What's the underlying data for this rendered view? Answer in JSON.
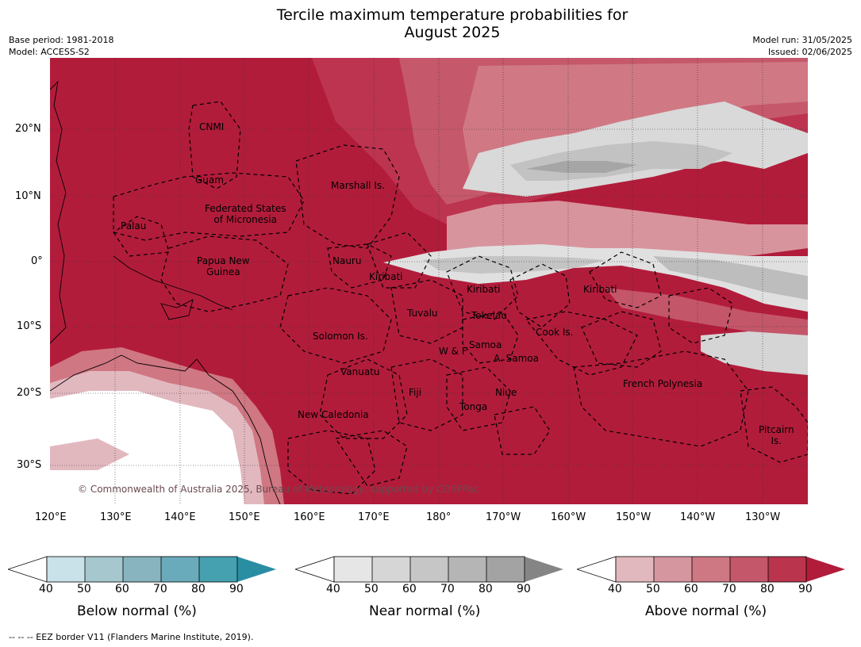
{
  "title_line1": "Tercile maximum temperature probabilities for",
  "title_line2": "August 2025",
  "meta": {
    "base_period": "Base period: 1981-2018",
    "model": "Model: ACCESS-S2",
    "model_run": "Model run: 31/05/2025",
    "issued": "Issued: 02/06/2025"
  },
  "lat_labels": [
    "20°N",
    "10°N",
    "0°",
    "10°S",
    "20°S",
    "30°S"
  ],
  "lon_labels": [
    "120°E",
    "130°E",
    "140°E",
    "150°E",
    "160°E",
    "170°E",
    "180°",
    "170°W",
    "160°W",
    "150°W",
    "140°W",
    "130°W"
  ],
  "regions": {
    "cnmi": "CNMI",
    "guam": "Guam",
    "marshall": "Marshall Is.",
    "fsm1": "Federated States",
    "fsm2": "of Micronesia",
    "palau": "Palau",
    "png1": "Papua New",
    "png2": "Guinea",
    "nauru": "Nauru",
    "kiribati_w": "Kiribati",
    "kiribati_c": "Kiribati",
    "kiribati_e": "Kiribati",
    "tuvalu": "Tuvalu",
    "tokelau": "Tokelau",
    "solomon": "Solomon Is.",
    "cook": "Cook Is.",
    "samoa": "Samoa",
    "wf": "W & F",
    "asamoa": "A. Samoa",
    "vanuatu": "Vanuatu",
    "fiji": "Fiji",
    "niue": "Niue",
    "tonga": "Tonga",
    "french_polynesia": "French Polynesia",
    "new_caledonia": "New Caledonia",
    "pitcairn1": "Pitcairn",
    "pitcairn2": "Is."
  },
  "copyright": "© Commonwealth of Australia 2025, Bureau of Meteorology, supported by COSPPac",
  "colorbars": [
    {
      "name": "Below normal (%)",
      "ticks": [
        "40",
        "50",
        "60",
        "70",
        "80",
        "90"
      ],
      "colors": [
        "#c9e1e8",
        "#a5c7cd",
        "#87b4be",
        "#6aabbb",
        "#45a0b0",
        "#2a8ea3"
      ]
    },
    {
      "name": "Near normal (%)",
      "ticks": [
        "40",
        "50",
        "60",
        "70",
        "80",
        "90"
      ],
      "colors": [
        "#e6e6e6",
        "#d6d6d6",
        "#c6c6c6",
        "#b5b5b5",
        "#a3a3a3",
        "#858585"
      ]
    },
    {
      "name": "Above normal (%)",
      "ticks": [
        "40",
        "50",
        "60",
        "70",
        "80",
        "90"
      ],
      "colors": [
        "#e2b8bf",
        "#d6969f",
        "#cd7883",
        "#c4586a",
        "#ba344d",
        "#b01c3a"
      ]
    }
  ],
  "footer": "--  --  -- EEZ border V11 (Flanders Marine Institute, 2019)."
}
